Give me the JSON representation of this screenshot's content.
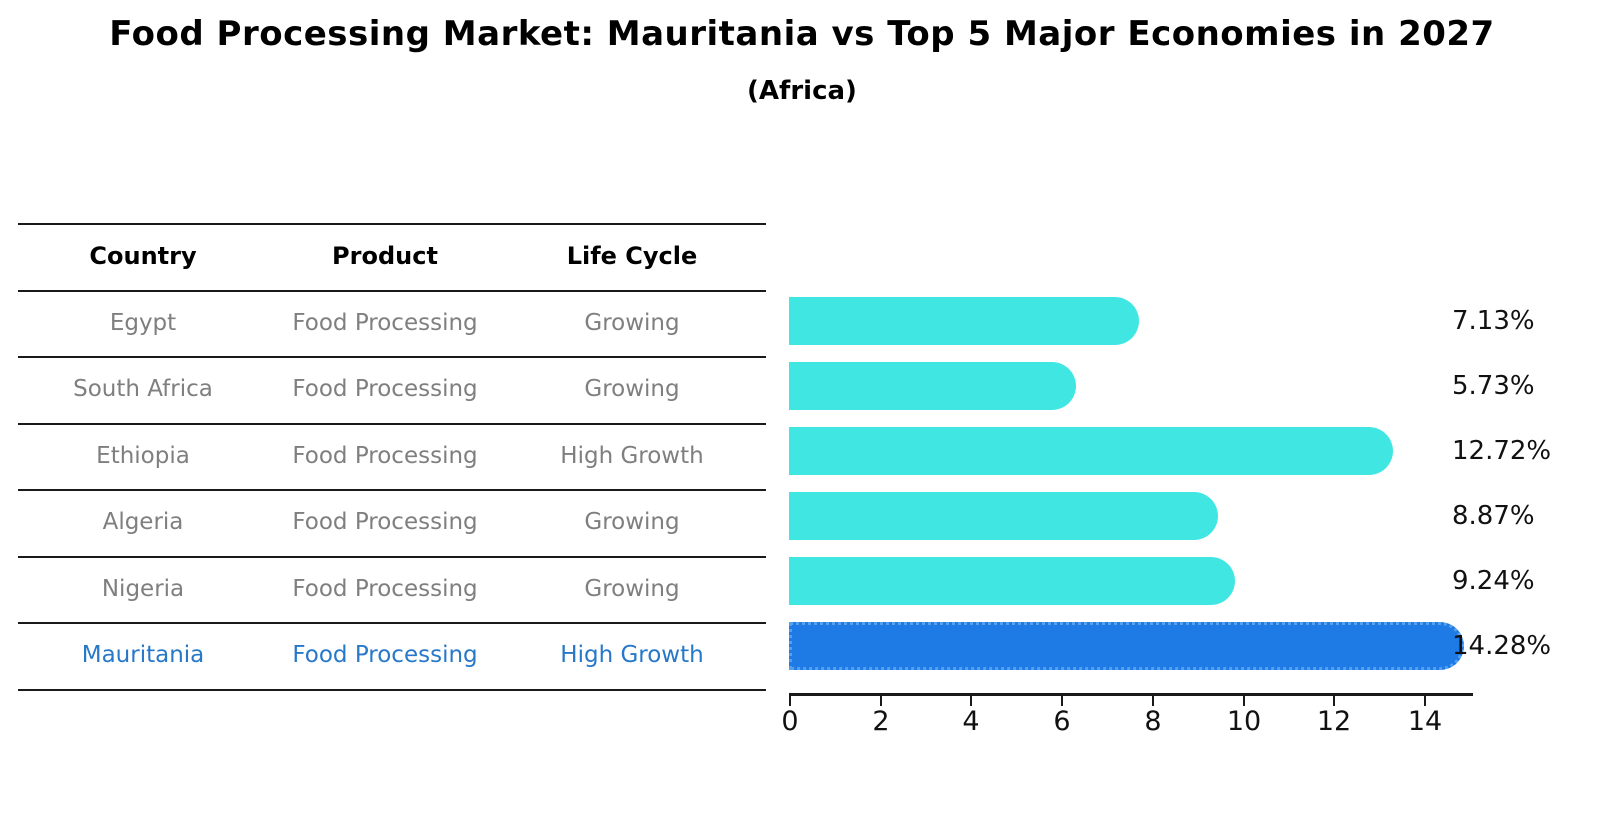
{
  "title": "Food Processing Market: Mauritania vs Top 5 Major Economies in 2027",
  "subtitle": "(Africa)",
  "table": {
    "headers": [
      "Country",
      "Product",
      "Life Cycle"
    ],
    "rows": [
      {
        "country": "Egypt",
        "product": "Food Processing",
        "life_cycle": "Growing",
        "highlight": false
      },
      {
        "country": "South Africa",
        "product": "Food Processing",
        "life_cycle": "Growing",
        "highlight": false
      },
      {
        "country": "Ethiopia",
        "product": "Food Processing",
        "life_cycle": "High Growth",
        "highlight": false
      },
      {
        "country": "Algeria",
        "product": "Food Processing",
        "life_cycle": "Growing",
        "highlight": false
      },
      {
        "country": "Nigeria",
        "product": "Food Processing",
        "life_cycle": "Growing",
        "highlight": false
      },
      {
        "country": "Mauritania",
        "product": "Food Processing",
        "life_cycle": "High Growth",
        "highlight": true
      }
    ]
  },
  "chart_data": {
    "type": "bar",
    "orientation": "horizontal",
    "title": "Food Processing Market: Mauritania vs Top 5 Major Economies in 2027",
    "subtitle": "(Africa)",
    "categories": [
      "Egypt",
      "South Africa",
      "Ethiopia",
      "Algeria",
      "Nigeria",
      "Mauritania"
    ],
    "values": [
      7.13,
      5.73,
      12.72,
      8.87,
      9.24,
      14.28
    ],
    "value_labels": [
      "7.13%",
      "5.73%",
      "12.72%",
      "8.87%",
      "9.24%",
      "14.28%"
    ],
    "xlabel": "",
    "ylabel": "",
    "xlim": [
      0,
      15
    ],
    "xticks": [
      0,
      2,
      4,
      6,
      8,
      10,
      12,
      14
    ],
    "grid": false,
    "legend": false,
    "bar_color": "#40e6e2",
    "highlight_color": "#1e7be6",
    "highlight_index": 5,
    "highlight_text_color": "#2778c9",
    "text_color_rows": "#7f7f7f"
  }
}
